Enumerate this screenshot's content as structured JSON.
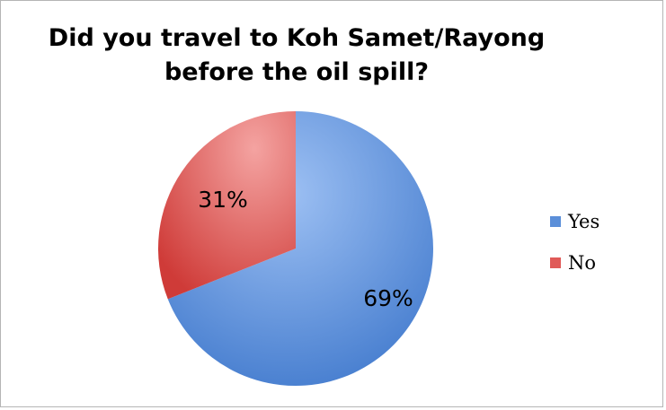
{
  "chart_data": {
    "type": "pie",
    "title_lines": [
      "Did you travel to Koh Samet/Rayong",
      "before the oil spill?"
    ],
    "slices": [
      {
        "name": "Yes",
        "value": 69,
        "label": "69%",
        "color": "#5b8fd9"
      },
      {
        "name": "No",
        "value": 31,
        "label": "31%",
        "color": "#e05a58"
      }
    ],
    "legend_placement": "right"
  }
}
